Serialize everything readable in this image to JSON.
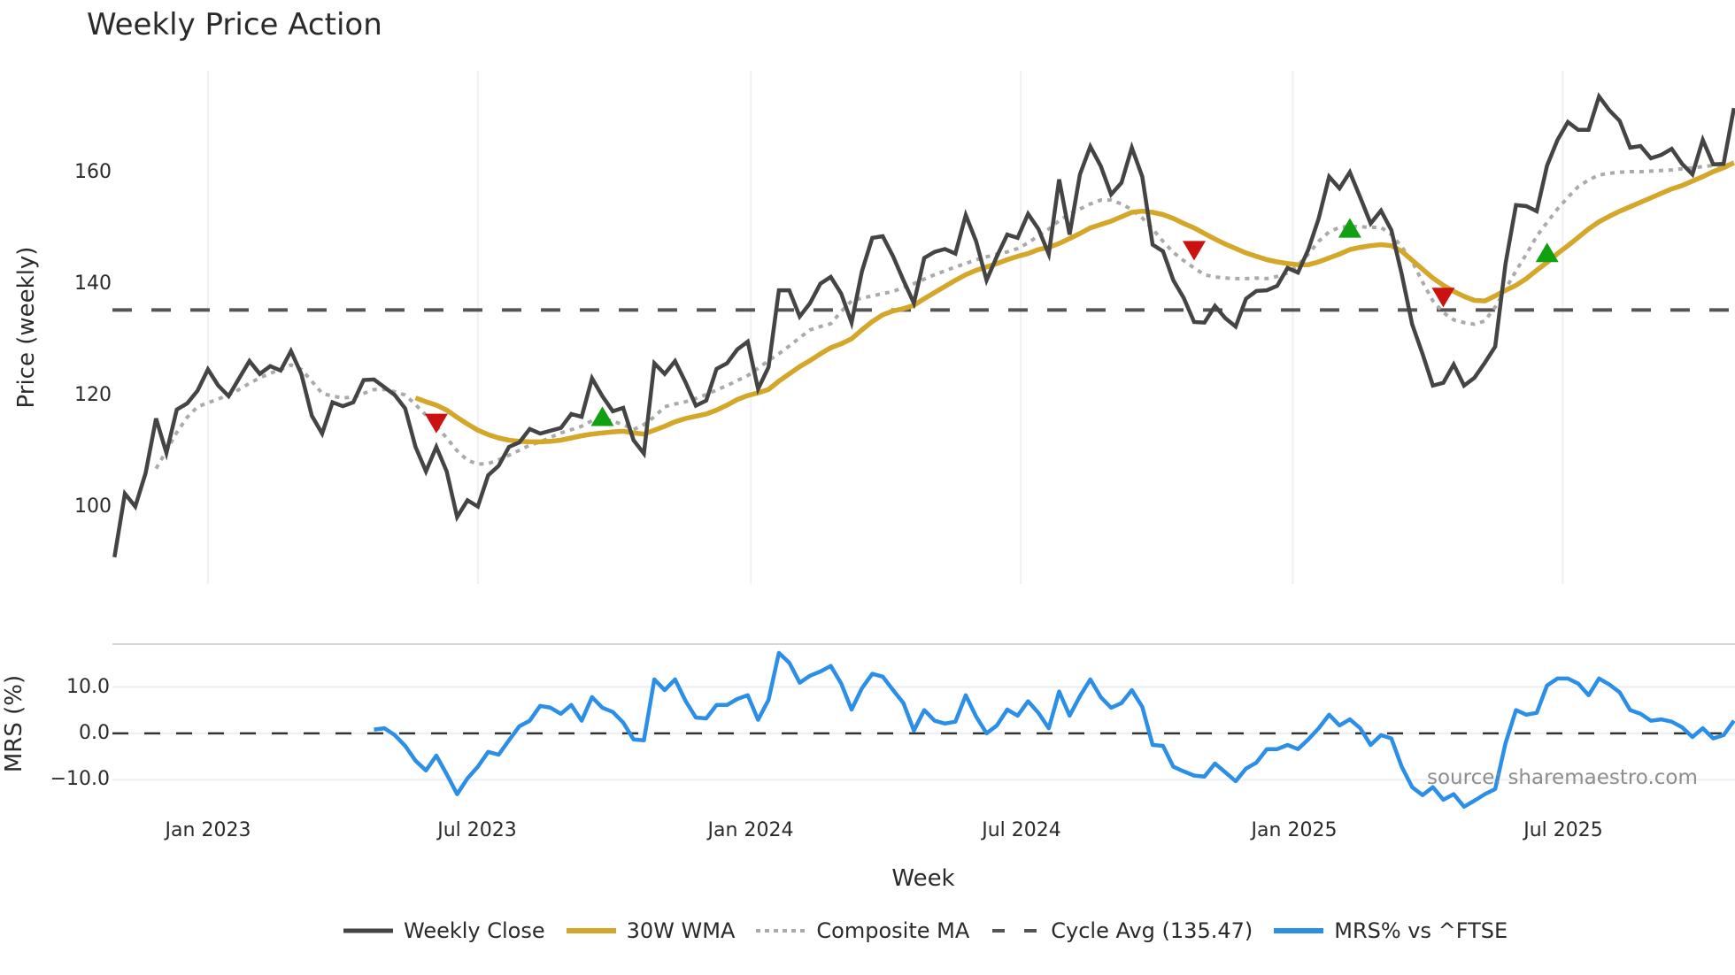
{
  "chart": {
    "title": "Weekly Price Action",
    "price_ylabel": "Price (weekly)",
    "mrs_ylabel": "MRS (%)",
    "xlabel": "Week",
    "source": "source: sharemaestro.com",
    "price_ticks": [
      "160",
      "140",
      "120",
      "100"
    ],
    "mrs_ticks": [
      "10.0",
      "0.0",
      "−10.0"
    ],
    "x_ticks": [
      "Jan 2023",
      "Jul 2023",
      "Jan 2024",
      "Jul 2024",
      "Jan 2025",
      "Jul 2025"
    ],
    "legend": [
      {
        "label": "Weekly Close",
        "style": "solid",
        "color": "#444444"
      },
      {
        "label": "30W WMA",
        "style": "solid",
        "color": "#D4A62A"
      },
      {
        "label": "Composite MA",
        "style": "dotted",
        "color": "#AAAAAA"
      },
      {
        "label": "Cycle Avg (135.47)",
        "style": "dashed",
        "color": "#555555"
      },
      {
        "label": "MRS% vs ^FTSE",
        "style": "solid",
        "color": "#2B8FE8"
      }
    ]
  },
  "chart_data": {
    "type": "line",
    "title": "Weekly Price Action",
    "xlabel": "Week",
    "ylabel": "Price (weekly)",
    "x_axis": {
      "unit": "week offset from 2023-01-02",
      "range": [
        -9.2,
        147.1
      ],
      "tick_labels": [
        "Jan 2023",
        "Jul 2023",
        "Jan 2024",
        "Jul 2024",
        "Jan 2025",
        "Jul 2025"
      ],
      "tick_weeks": [
        0,
        26,
        52.3,
        78.3,
        104.5,
        130.5
      ]
    },
    "price_panel": {
      "ylim": [
        86.3,
        178.4
      ],
      "yticks": [
        100,
        120,
        140,
        160
      ],
      "series": [
        {
          "name": "Weekly Close",
          "color": "#444444",
          "start_week": -9,
          "values": [
            91.1,
            102.5,
            100.2,
            106.2,
            116.0,
            109.8,
            117.6,
            118.7,
            121.0,
            124.8,
            121.9,
            120.0,
            123.2,
            126.3,
            124.0,
            125.4,
            124.6,
            128.1,
            124.0,
            116.5,
            113.3,
            118.9,
            118.2,
            118.9,
            122.9,
            123.0,
            121.6,
            120.2,
            117.8,
            110.9,
            106.5,
            110.9,
            106.5,
            98.3,
            101.3,
            100.2,
            105.8,
            107.5,
            110.9,
            111.7,
            114.1,
            113.3,
            113.8,
            114.3,
            116.8,
            116.3,
            123.2,
            120.0,
            117.3,
            117.9,
            112.1,
            109.7,
            125.9,
            124.0,
            126.3,
            122.5,
            118.3,
            119.2,
            124.9,
            125.9,
            128.4,
            129.8,
            121.3,
            125.2,
            139.0,
            139.0,
            134.3,
            136.7,
            140.2,
            141.4,
            138.4,
            133.2,
            142.4,
            148.4,
            148.7,
            145.1,
            140.8,
            136.7,
            144.8,
            145.9,
            146.4,
            145.6,
            152.5,
            147.8,
            140.8,
            145.1,
            149.0,
            148.4,
            152.7,
            150.0,
            145.5,
            158.9,
            149.0,
            159.8,
            164.8,
            161.3,
            156.2,
            158.3,
            164.6,
            159.4,
            147.2,
            146.0,
            140.8,
            137.6,
            133.3,
            133.2,
            136.2,
            134.0,
            132.5,
            137.5,
            138.9,
            139.0,
            139.8,
            143.0,
            142.2,
            146.3,
            151.9,
            159.4,
            157.3,
            160.2,
            155.7,
            151.0,
            153.3,
            149.8,
            141.9,
            132.9,
            127.6,
            121.9,
            122.4,
            125.7,
            121.9,
            123.3,
            126.0,
            128.9,
            143.8,
            154.3,
            154.1,
            153.2,
            161.4,
            166.0,
            169.2,
            167.8,
            167.8,
            173.8,
            171.3,
            169.4,
            164.6,
            164.9,
            162.7,
            163.3,
            164.4,
            161.7,
            159.8,
            166.0,
            161.6,
            161.7,
            171.7
          ]
        },
        {
          "name": "30W WMA",
          "color": "#D4A62A",
          "start_week": 20,
          "values": [
            119.7,
            119.0,
            118.4,
            117.5,
            116.2,
            115.0,
            113.9,
            113.1,
            112.5,
            112.1,
            111.9,
            111.8,
            111.8,
            111.9,
            112.1,
            112.5,
            112.9,
            113.2,
            113.4,
            113.6,
            113.7,
            113.4,
            113.2,
            113.9,
            114.6,
            115.4,
            116.0,
            116.4,
            116.8,
            117.5,
            118.4,
            119.4,
            120.1,
            120.6,
            121.2,
            122.7,
            124.0,
            125.3,
            126.4,
            127.6,
            128.7,
            129.4,
            130.3,
            131.9,
            133.4,
            134.6,
            135.3,
            135.7,
            136.3,
            137.5,
            138.6,
            139.7,
            140.8,
            141.8,
            142.6,
            143.2,
            143.8,
            144.5,
            145.1,
            145.6,
            146.3,
            146.7,
            147.4,
            148.3,
            149.2,
            150.2,
            150.8,
            151.4,
            152.2,
            153.0,
            153.2,
            153.0,
            152.6,
            151.9,
            151.0,
            150.2,
            149.2,
            148.2,
            147.3,
            146.5,
            145.7,
            145.1,
            144.5,
            144.1,
            143.8,
            143.6,
            143.6,
            144.1,
            144.8,
            145.5,
            146.3,
            146.7,
            147.0,
            147.2,
            147.0,
            146.0,
            144.4,
            142.8,
            141.2,
            139.9,
            138.8,
            137.9,
            137.2,
            137.1,
            138.0,
            139.0,
            139.9,
            141.1,
            142.6,
            144.0,
            145.6,
            147.0,
            148.5,
            150.0,
            151.3,
            152.3,
            153.2,
            154.0,
            154.8,
            155.6,
            156.4,
            157.2,
            157.8,
            158.6,
            159.4,
            160.3,
            161.0,
            161.9
          ]
        },
        {
          "name": "Composite MA",
          "color": "#AAAAAA",
          "start_week": -5,
          "values": [
            107.0,
            110.2,
            113.5,
            116.2,
            118.1,
            118.8,
            119.5,
            120.2,
            121.2,
            122.3,
            123.3,
            124.1,
            124.8,
            125.6,
            124.8,
            122.7,
            120.5,
            120.0,
            119.7,
            119.8,
            120.5,
            121.2,
            121.2,
            120.8,
            120.2,
            118.5,
            116.6,
            114.6,
            112.5,
            110.2,
            108.5,
            107.8,
            107.9,
            108.6,
            109.4,
            110.3,
            111.2,
            111.8,
            112.6,
            113.4,
            114.0,
            114.6,
            115.6,
            116.0,
            115.5,
            114.9,
            114.0,
            114.9,
            116.3,
            118.1,
            118.6,
            119.0,
            119.6,
            120.3,
            121.1,
            121.9,
            122.8,
            123.7,
            125.0,
            126.4,
            127.6,
            129.0,
            130.5,
            131.9,
            132.5,
            133.0,
            135.2,
            137.1,
            137.6,
            138.0,
            138.4,
            138.8,
            139.5,
            140.2,
            141.0,
            141.8,
            142.5,
            143.2,
            143.8,
            144.5,
            145.0,
            145.5,
            145.9,
            146.5,
            147.5,
            148.8,
            150.0,
            151.5,
            152.7,
            153.6,
            154.5,
            155.2,
            155.2,
            154.5,
            153.5,
            152.0,
            150.0,
            147.8,
            145.8,
            144.3,
            143.0,
            141.8,
            141.4,
            141.2,
            141.1,
            141.1,
            141.2,
            141.1,
            141.5,
            142.1,
            143.5,
            145.5,
            147.8,
            149.5,
            150.3,
            150.5,
            150.4,
            150.3,
            150.3,
            149.0,
            146.8,
            144.2,
            140.5,
            137.1,
            135.0,
            133.7,
            133.2,
            132.9,
            133.5,
            136.0,
            139.2,
            142.5,
            145.5,
            148.7,
            151.2,
            153.6,
            155.7,
            157.6,
            158.8,
            159.7,
            160.0,
            160.2,
            160.3,
            160.3,
            160.4,
            160.5,
            160.6,
            160.8,
            161.0,
            161.2,
            161.4,
            161.5,
            161.7
          ]
        }
      ],
      "hline": {
        "name": "Cycle Avg (135.47)",
        "value": 135.47,
        "color": "#555555",
        "style": "dashed"
      },
      "markers": [
        {
          "type": "sell",
          "shape": "triangle-down",
          "color": "#CC1111",
          "week": 22,
          "value": 115.3
        },
        {
          "type": "buy",
          "shape": "triangle-up",
          "color": "#11A011",
          "week": 38,
          "value": 116.2
        },
        {
          "type": "sell",
          "shape": "triangle-down",
          "color": "#CC1111",
          "week": 95,
          "value": 146.3
        },
        {
          "type": "buy",
          "shape": "triangle-up",
          "color": "#11A011",
          "week": 110,
          "value": 150.0
        },
        {
          "type": "sell",
          "shape": "triangle-down",
          "color": "#CC1111",
          "week": 119,
          "value": 137.9
        },
        {
          "type": "buy",
          "shape": "triangle-up",
          "color": "#11A011",
          "week": 129,
          "value": 145.6
        }
      ]
    },
    "mrs_panel": {
      "ylabel": "MRS (%)",
      "ylim": [
        -16.6,
        19.2
      ],
      "yticks": [
        -10,
        0,
        10
      ],
      "hline": {
        "value": 0,
        "style": "dashed",
        "color": "#333333"
      },
      "series": [
        {
          "name": "MRS% vs ^FTSE",
          "color": "#2B8FE8",
          "start_week": 16,
          "values": [
            0.8,
            1.1,
            -0.4,
            -2.7,
            -5.9,
            -8.0,
            -4.8,
            -8.8,
            -13.1,
            -9.7,
            -7.2,
            -4.0,
            -4.6,
            -1.5,
            1.5,
            2.7,
            5.9,
            5.5,
            4.2,
            6.1,
            2.7,
            7.8,
            5.5,
            4.6,
            2.3,
            -1.3,
            -1.5,
            11.6,
            9.3,
            11.6,
            7.0,
            3.4,
            3.2,
            6.1,
            6.1,
            7.4,
            8.2,
            2.9,
            7.2,
            17.3,
            15.2,
            10.9,
            12.4,
            13.3,
            14.5,
            10.7,
            5.1,
            9.7,
            12.8,
            12.2,
            9.3,
            6.5,
            0.6,
            5.0,
            2.7,
            2.1,
            2.5,
            8.2,
            3.6,
            0.0,
            1.7,
            5.1,
            3.8,
            6.9,
            4.4,
            1.1,
            9.0,
            3.8,
            8.0,
            11.6,
            7.8,
            5.5,
            6.5,
            9.3,
            5.7,
            -2.5,
            -2.7,
            -7.2,
            -8.2,
            -9.1,
            -9.3,
            -6.5,
            -8.4,
            -10.3,
            -7.6,
            -6.3,
            -3.4,
            -3.4,
            -2.5,
            -3.4,
            -1.3,
            1.1,
            4.0,
            1.7,
            3.0,
            1.1,
            -2.5,
            -0.4,
            -1.1,
            -7.2,
            -11.6,
            -13.3,
            -11.6,
            -14.3,
            -13.1,
            -15.8,
            -14.5,
            -13.1,
            -12.0,
            -2.1,
            5.0,
            4.0,
            4.4,
            10.3,
            11.8,
            11.8,
            10.7,
            8.2,
            11.8,
            10.5,
            8.8,
            5.0,
            4.2,
            2.7,
            3.0,
            2.5,
            1.3,
            -0.8,
            1.1,
            -1.1,
            -0.4,
            2.7
          ]
        }
      ]
    },
    "legend_position": "bottom",
    "grid": true
  }
}
